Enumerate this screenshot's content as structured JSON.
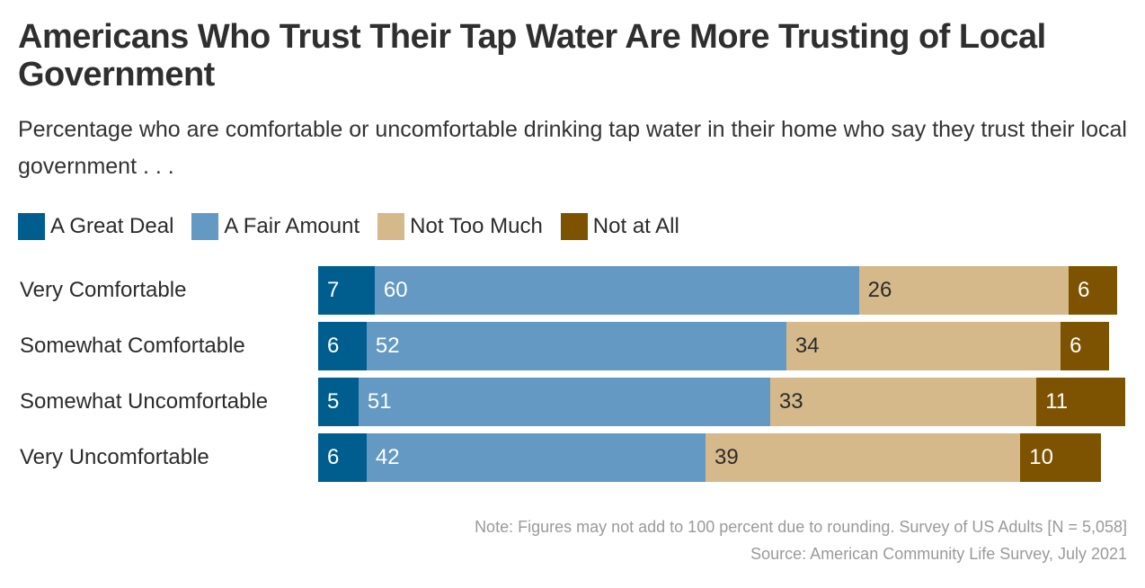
{
  "colors": {
    "a_great_deal": "#005e8f",
    "a_fair_amount": "#6399c2",
    "not_too_much": "#d6b98b",
    "not_at_all": "#7d5200"
  },
  "chart_data": {
    "type": "bar",
    "orientation": "horizontal",
    "stacked": true,
    "title": "Americans Who Trust Their Tap Water Are More Trusting of Local Government",
    "subtitle": "Percentage who are comfortable or uncomfortable drinking tap water in their home who say they trust their local government . . .",
    "legend_position": "top-left",
    "categories": [
      "Very Comfortable",
      "Somewhat Comfortable",
      "Somewhat Uncomfortable",
      "Very Uncomfortable"
    ],
    "series": [
      {
        "name": "A Great Deal",
        "values": [
          7,
          6,
          5,
          6
        ],
        "color": "#005e8f",
        "label_color": "#ffffff"
      },
      {
        "name": "A Fair Amount",
        "values": [
          60,
          52,
          51,
          42
        ],
        "color": "#6399c2",
        "label_color": "#ffffff"
      },
      {
        "name": "Not Too Much",
        "values": [
          26,
          34,
          33,
          39
        ],
        "color": "#d6b98b",
        "label_color": "#2b2b2b"
      },
      {
        "name": "Not at All",
        "values": [
          6,
          6,
          11,
          10
        ],
        "color": "#7d5200",
        "label_color": "#ffffff"
      }
    ],
    "xlim": [
      0,
      100
    ],
    "grid": false
  },
  "footer": {
    "note": "Note: Figures may not add to 100 percent due to rounding. Survey of US Adults [N = 5,058]",
    "source": "Source: American Community Life Survey, July 2021"
  }
}
